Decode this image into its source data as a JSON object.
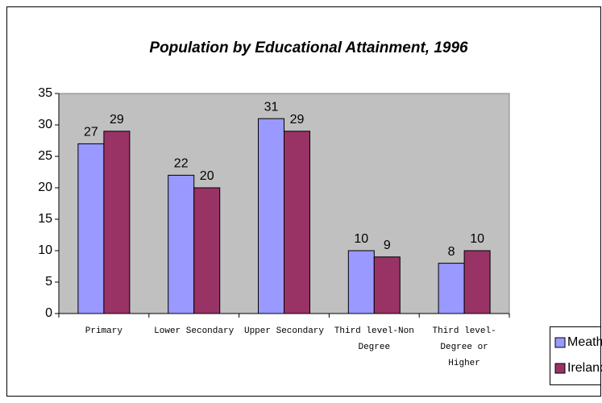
{
  "chart_data": {
    "type": "bar",
    "title": "Population by Educational Attainment, 1996",
    "categories": [
      "Primary",
      "Lower Secondary",
      "Upper Secondary",
      "Third level-Non Degree",
      "Third level-Degree or Higher"
    ],
    "series": [
      {
        "name": "Meath",
        "color": "#9999ff",
        "values": [
          27,
          22,
          31,
          10,
          8
        ]
      },
      {
        "name": "Ireland",
        "color": "#993366",
        "values": [
          29,
          20,
          29,
          9,
          10
        ]
      }
    ],
    "ylim": [
      0,
      35
    ],
    "yticks": [
      0,
      5,
      10,
      15,
      20,
      25,
      30,
      35
    ],
    "grid": false,
    "legend": "bottom-right"
  }
}
